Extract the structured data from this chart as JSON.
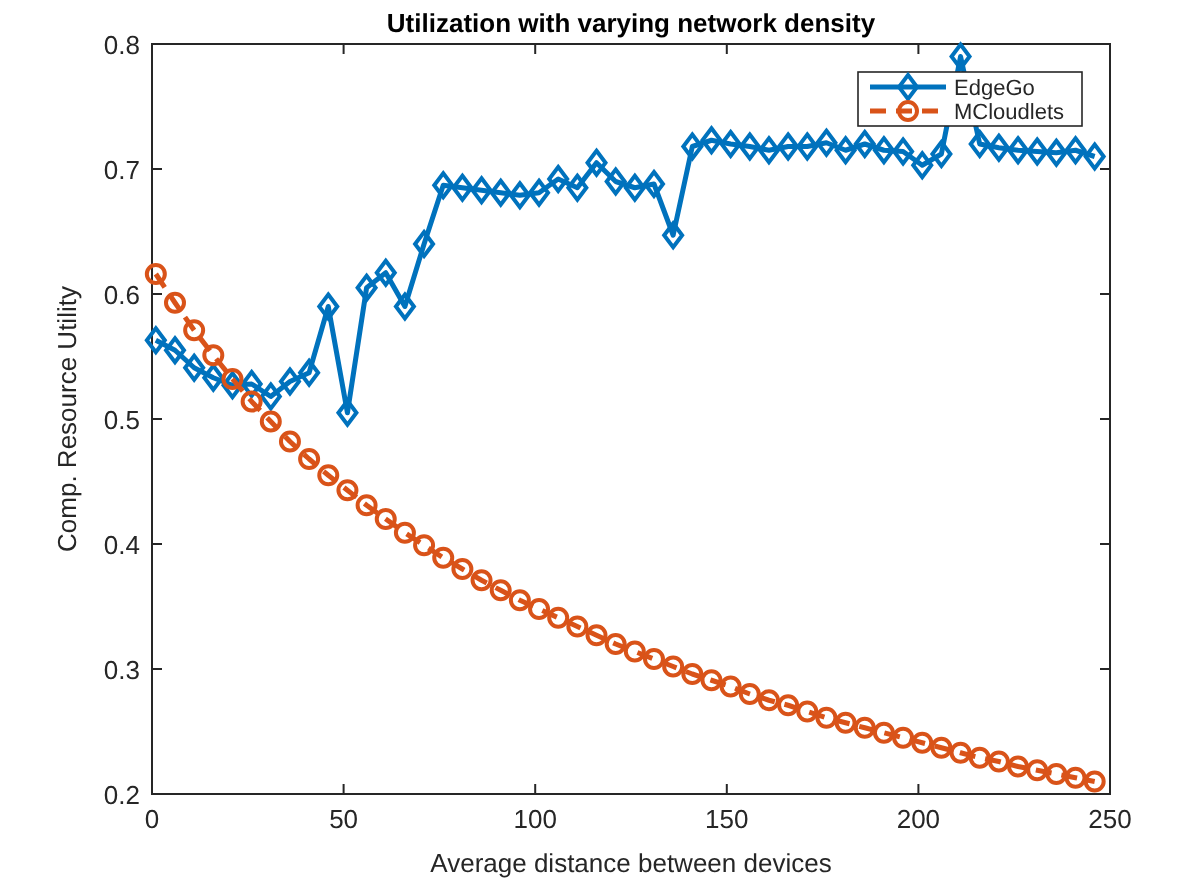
{
  "chart_data": {
    "type": "line",
    "title": "Utilization with varying network density",
    "xlabel": "Average distance between devices",
    "ylabel": "Comp. Resource Utility",
    "x": [
      1,
      6,
      11,
      16,
      21,
      26,
      31,
      36,
      41,
      46,
      51,
      56,
      61,
      66,
      71,
      76,
      81,
      86,
      91,
      96,
      101,
      106,
      111,
      116,
      121,
      126,
      131,
      136,
      141,
      146,
      151,
      156,
      161,
      166,
      171,
      176,
      181,
      186,
      191,
      196,
      201,
      206,
      211,
      216,
      221,
      226,
      231,
      236,
      241,
      246
    ],
    "series": [
      {
        "name": "EdgeGo",
        "color": "#0072bd",
        "marker": "diamond",
        "line_style": "solid",
        "values": [
          0.563,
          0.555,
          0.541,
          0.533,
          0.527,
          0.528,
          0.518,
          0.53,
          0.537,
          0.59,
          0.505,
          0.605,
          0.617,
          0.59,
          0.64,
          0.687,
          0.685,
          0.683,
          0.681,
          0.679,
          0.681,
          0.692,
          0.685,
          0.705,
          0.69,
          0.685,
          0.688,
          0.647,
          0.718,
          0.723,
          0.72,
          0.718,
          0.715,
          0.718,
          0.718,
          0.721,
          0.715,
          0.72,
          0.715,
          0.714,
          0.703,
          0.712,
          0.79,
          0.72,
          0.717,
          0.715,
          0.714,
          0.713,
          0.715,
          0.71
        ]
      },
      {
        "name": "MCloudlets",
        "color": "#d95319",
        "marker": "circle",
        "line_style": "dashed",
        "values": [
          0.616,
          0.593,
          0.571,
          0.551,
          0.532,
          0.514,
          0.498,
          0.482,
          0.468,
          0.455,
          0.443,
          0.431,
          0.42,
          0.409,
          0.399,
          0.389,
          0.38,
          0.371,
          0.363,
          0.355,
          0.348,
          0.341,
          0.334,
          0.327,
          0.32,
          0.314,
          0.308,
          0.302,
          0.296,
          0.291,
          0.286,
          0.28,
          0.275,
          0.271,
          0.266,
          0.261,
          0.257,
          0.253,
          0.249,
          0.245,
          0.241,
          0.237,
          0.233,
          0.229,
          0.226,
          0.222,
          0.219,
          0.216,
          0.213,
          0.21
        ]
      }
    ],
    "xlim": [
      0,
      250
    ],
    "xticks": [
      0,
      50,
      100,
      150,
      200,
      250
    ],
    "ylim": [
      0.2,
      0.8
    ],
    "yticks": [
      0.2,
      0.3,
      0.4,
      0.5,
      0.6,
      0.7,
      0.8
    ],
    "grid": false,
    "legend": "top right"
  }
}
